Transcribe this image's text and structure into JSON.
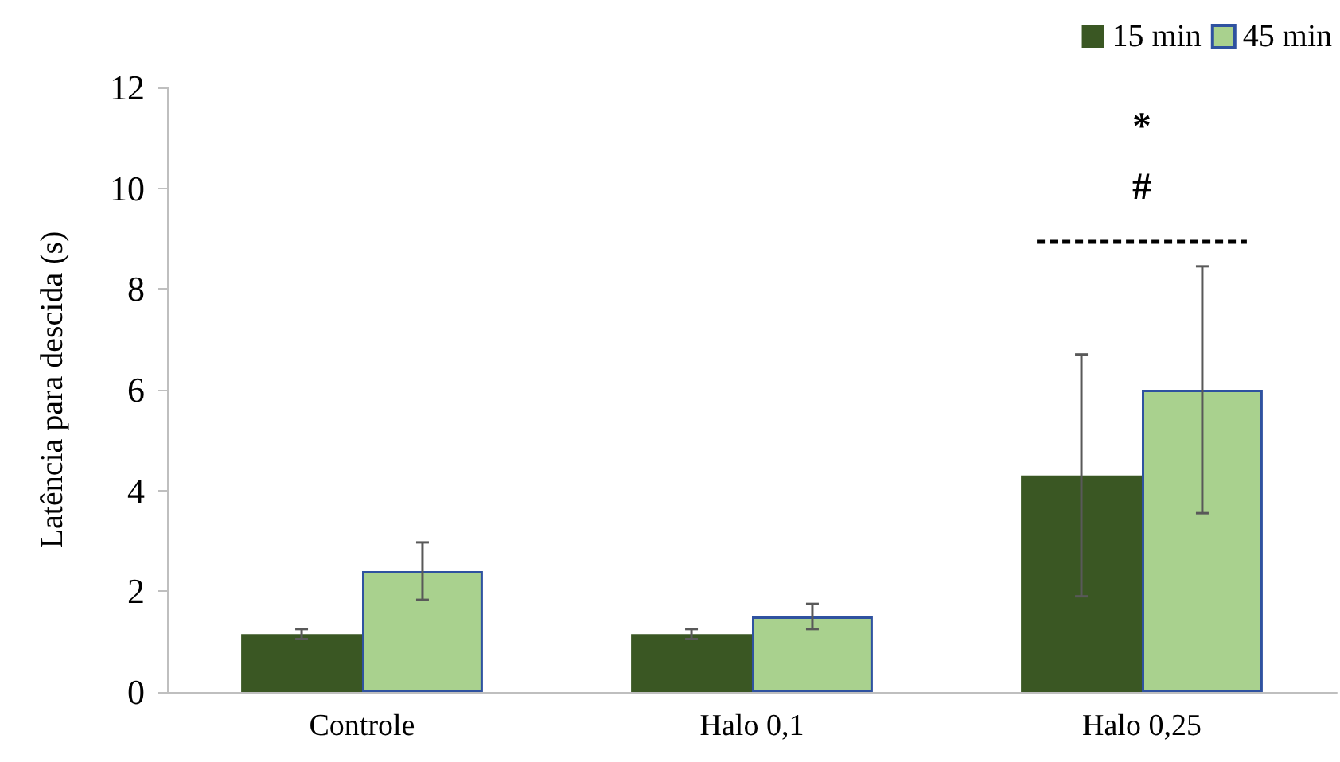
{
  "chart_data": {
    "type": "bar",
    "ylabel": "Latência para descida (s)",
    "categories": [
      "Controle",
      "Halo 0,1",
      "Halo 0,25"
    ],
    "series": [
      {
        "name": "15 min",
        "color": "#3a5723",
        "values": [
          1.15,
          1.15,
          4.3
        ],
        "errors": [
          0.1,
          0.1,
          2.4
        ]
      },
      {
        "name": "45 min",
        "color": "#a9d18e",
        "values": [
          2.4,
          1.5,
          6.0
        ],
        "errors": [
          0.57,
          0.25,
          2.45
        ]
      }
    ],
    "ylim": [
      0,
      12
    ],
    "yticks": [
      0,
      2,
      4,
      6,
      8,
      10,
      12
    ],
    "grid": false,
    "legend": "top right",
    "annotations": [
      "*",
      "#"
    ]
  }
}
